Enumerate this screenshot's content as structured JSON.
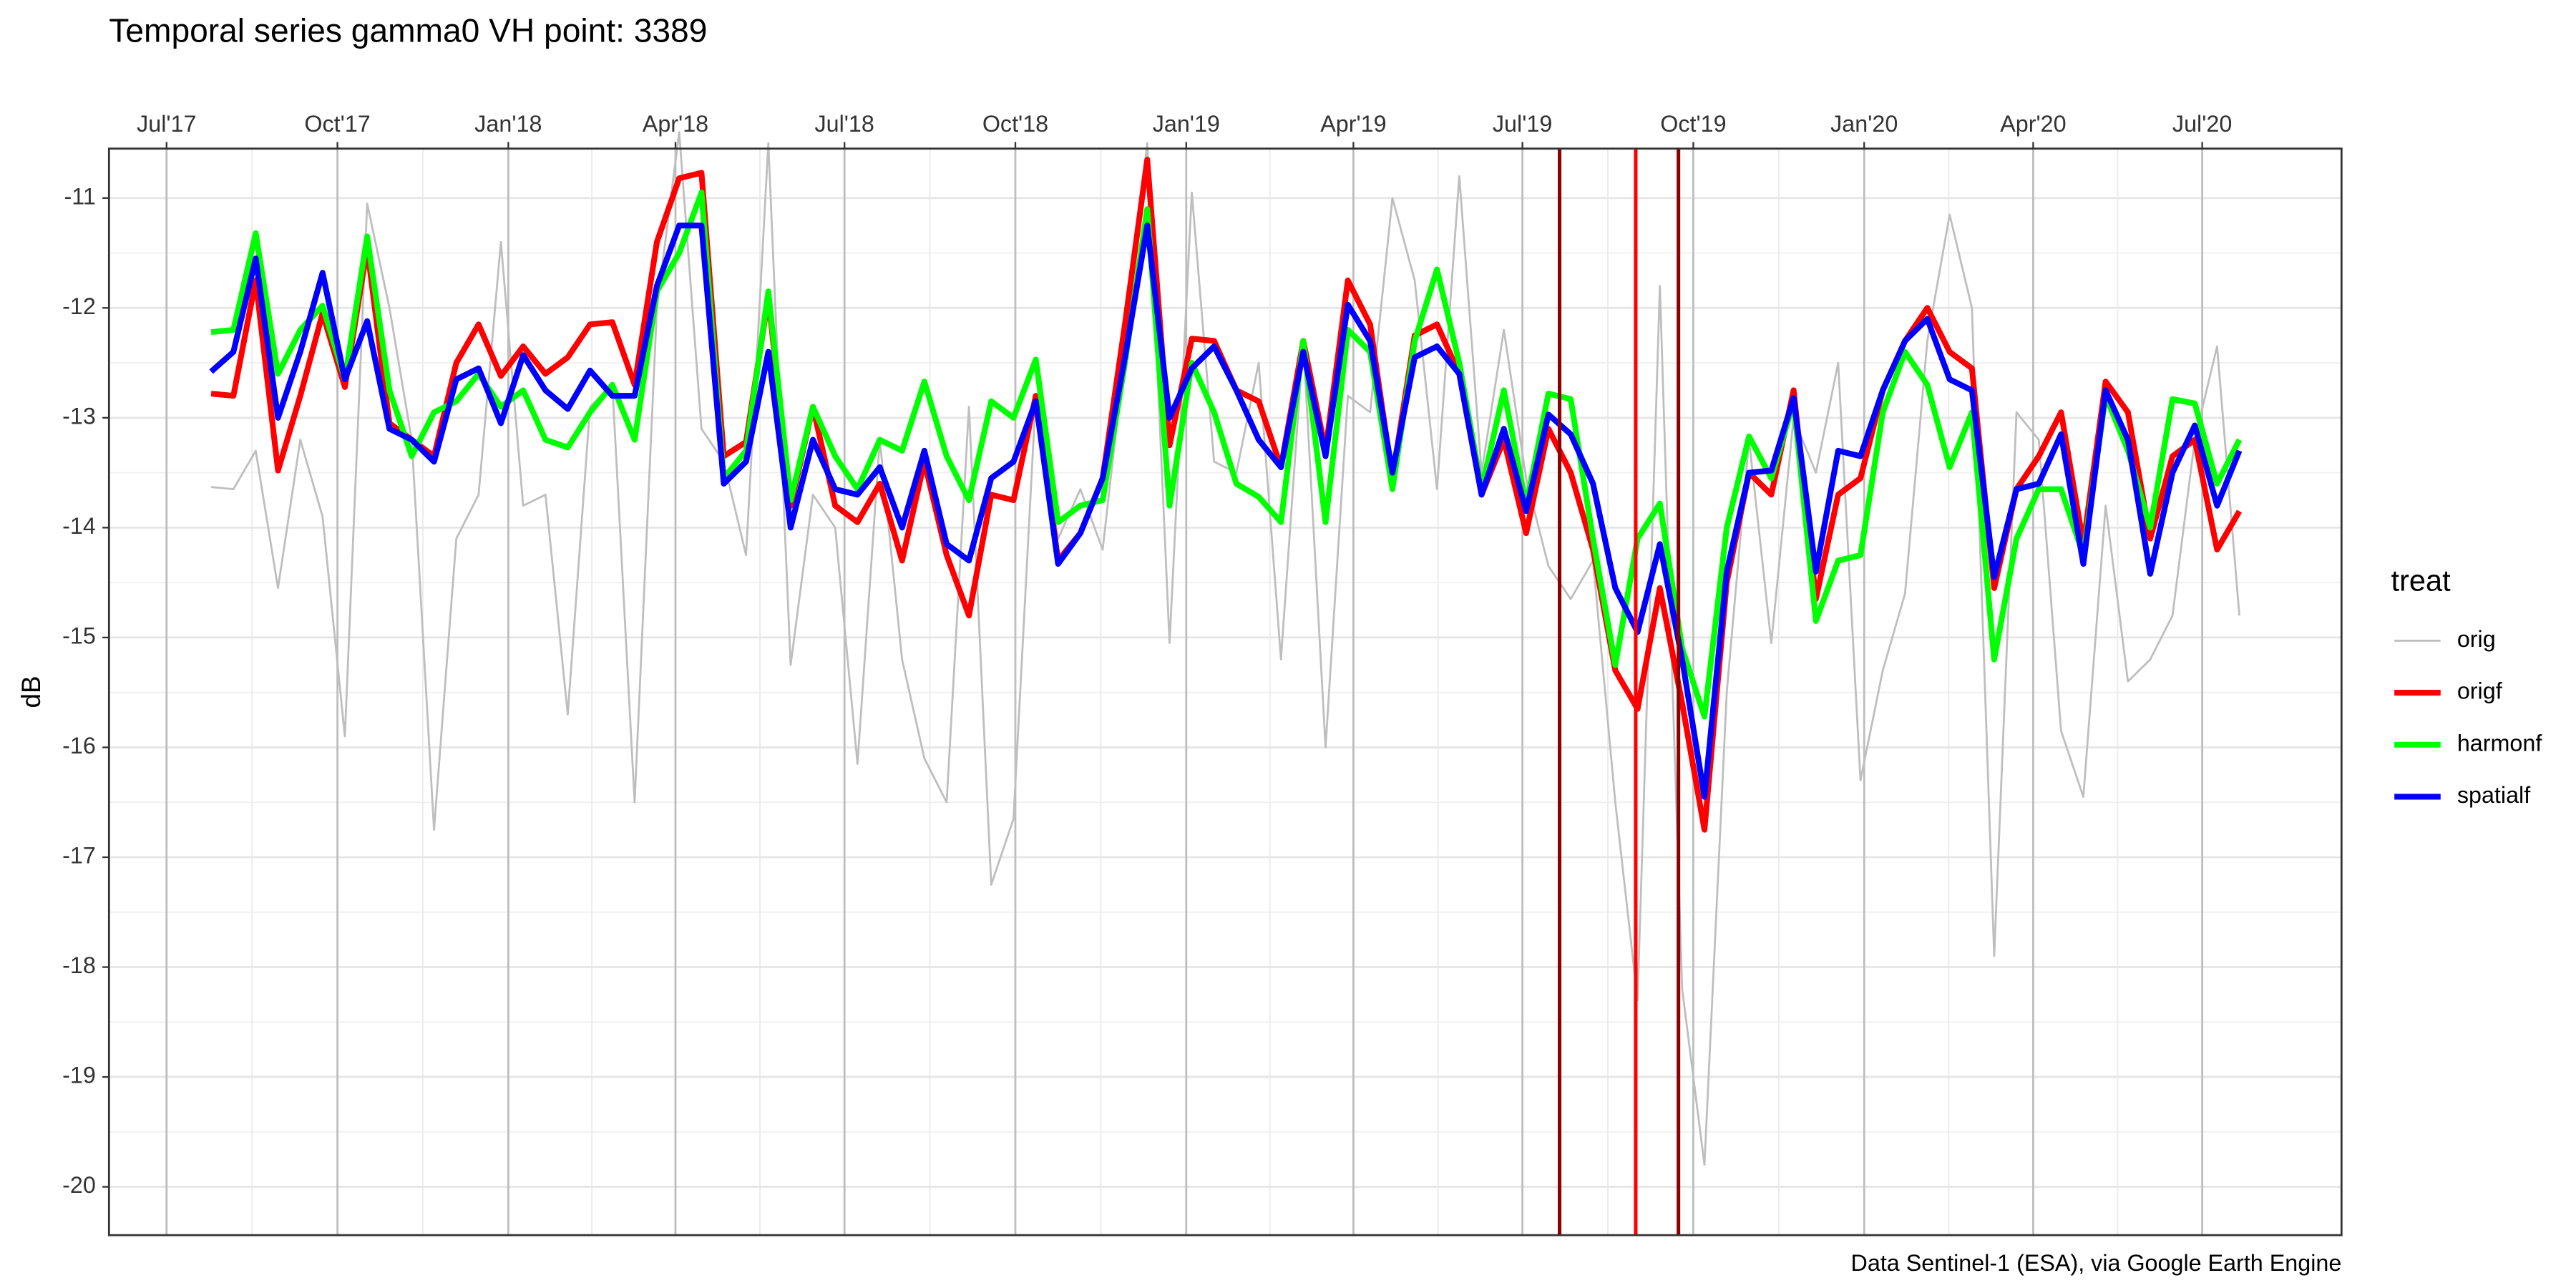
{
  "chart_data": {
    "type": "line",
    "title": "Temporal series gamma0 VH point: 3389",
    "y_label": "dB",
    "caption": "Data Sentinel-1 (ESA), via Google Earth Engine",
    "legend_title": "treat",
    "legend_position": "right",
    "grid": true,
    "minor_grid": true,
    "x_axis_position": "top",
    "x": [
      "2017-07-25",
      "2017-08-06",
      "2017-08-18",
      "2017-08-30",
      "2017-09-11",
      "2017-09-23",
      "2017-10-05",
      "2017-10-17",
      "2017-10-29",
      "2017-11-10",
      "2017-11-22",
      "2017-12-04",
      "2017-12-16",
      "2017-12-28",
      "2018-01-09",
      "2018-01-21",
      "2018-02-02",
      "2018-02-14",
      "2018-02-26",
      "2018-03-10",
      "2018-03-22",
      "2018-04-03",
      "2018-04-15",
      "2018-04-27",
      "2018-05-09",
      "2018-05-21",
      "2018-06-02",
      "2018-06-14",
      "2018-06-26",
      "2018-07-08",
      "2018-07-20",
      "2018-08-01",
      "2018-08-13",
      "2018-08-25",
      "2018-09-06",
      "2018-09-18",
      "2018-09-30",
      "2018-10-12",
      "2018-10-24",
      "2018-11-05",
      "2018-11-17",
      "2018-11-29",
      "2018-12-11",
      "2018-12-23",
      "2019-01-04",
      "2019-01-16",
      "2019-01-28",
      "2019-02-09",
      "2019-02-21",
      "2019-03-05",
      "2019-03-17",
      "2019-03-29",
      "2019-04-10",
      "2019-04-22",
      "2019-05-04",
      "2019-05-16",
      "2019-05-28",
      "2019-06-09",
      "2019-06-21",
      "2019-07-03",
      "2019-07-15",
      "2019-07-27",
      "2019-08-08",
      "2019-08-20",
      "2019-09-01",
      "2019-09-13",
      "2019-09-25",
      "2019-10-07",
      "2019-10-19",
      "2019-10-31",
      "2019-11-12",
      "2019-11-24",
      "2019-12-06",
      "2019-12-18",
      "2019-12-30",
      "2020-01-11",
      "2020-01-23",
      "2020-02-04",
      "2020-02-16",
      "2020-02-28",
      "2020-03-11",
      "2020-03-23",
      "2020-04-04",
      "2020-04-16",
      "2020-04-28",
      "2020-05-10",
      "2020-05-22",
      "2020-06-03",
      "2020-06-15",
      "2020-06-27",
      "2020-07-09",
      "2020-07-21"
    ],
    "series": [
      {
        "name": "orig",
        "color": "#bebebe",
        "line_width": 1.2,
        "values": [
          -13.63,
          -13.65,
          -13.3,
          -14.55,
          -13.2,
          -13.9,
          -15.9,
          -11.05,
          -12.0,
          -13.2,
          -16.75,
          -14.1,
          -13.7,
          -11.4,
          -13.8,
          -13.7,
          -15.7,
          -12.9,
          -12.7,
          -16.5,
          -12.0,
          -10.4,
          -13.1,
          -13.4,
          -14.25,
          -10.5,
          -15.25,
          -13.7,
          -14.0,
          -16.15,
          -13.2,
          -15.2,
          -16.1,
          -16.5,
          -12.9,
          -17.25,
          -16.65,
          -12.8,
          -14.1,
          -13.65,
          -14.2,
          -12.4,
          -10.5,
          -15.05,
          -10.95,
          -13.4,
          -13.5,
          -12.5,
          -15.2,
          -12.3,
          -16.0,
          -12.8,
          -12.95,
          -11.0,
          -11.75,
          -13.65,
          -10.8,
          -13.5,
          -12.2,
          -13.55,
          -14.35,
          -14.65,
          -14.3,
          -16.5,
          -18.3,
          -11.8,
          -18.2,
          -19.8,
          -15.5,
          -13.2,
          -15.05,
          -13.0,
          -13.5,
          -12.5,
          -16.3,
          -15.3,
          -14.6,
          -12.3,
          -11.15,
          -12.0,
          -17.9,
          -12.95,
          -13.2,
          -15.85,
          -16.45,
          -13.8,
          -15.4,
          -15.2,
          -14.8,
          -13.2,
          -12.35,
          -14.8
        ]
      },
      {
        "name": "origf",
        "color": "#ff0000",
        "line_width": 3.5,
        "values": [
          -12.78,
          -12.8,
          -11.75,
          -13.48,
          -12.8,
          -12.05,
          -12.72,
          -11.45,
          -13.05,
          -13.2,
          -13.35,
          -12.5,
          -12.15,
          -12.62,
          -12.35,
          -12.6,
          -12.45,
          -12.15,
          -12.13,
          -12.7,
          -11.4,
          -10.82,
          -10.77,
          -13.35,
          -13.22,
          -11.9,
          -13.8,
          -12.9,
          -13.8,
          -13.95,
          -13.6,
          -14.3,
          -13.4,
          -14.25,
          -14.8,
          -13.7,
          -13.75,
          -12.8,
          -14.3,
          -14.05,
          -13.55,
          -12.15,
          -10.65,
          -13.25,
          -12.28,
          -12.3,
          -12.75,
          -12.85,
          -13.45,
          -12.3,
          -13.3,
          -11.75,
          -12.15,
          -13.55,
          -12.25,
          -12.15,
          -12.6,
          -13.7,
          -13.2,
          -14.05,
          -13.1,
          -13.5,
          -14.2,
          -15.3,
          -15.65,
          -14.55,
          -15.6,
          -16.75,
          -14.5,
          -13.5,
          -13.7,
          -12.75,
          -14.65,
          -13.7,
          -13.55,
          -12.75,
          -12.3,
          -12.0,
          -12.4,
          -12.55,
          -14.55,
          -13.65,
          -13.35,
          -12.95,
          -14.15,
          -12.67,
          -12.95,
          -14.1,
          -13.35,
          -13.2,
          -14.2,
          -13.85
        ]
      },
      {
        "name": "harmonf",
        "color": "#00ff00",
        "line_width": 3.5,
        "values": [
          -12.22,
          -12.2,
          -11.32,
          -12.6,
          -12.2,
          -11.98,
          -12.65,
          -11.35,
          -12.75,
          -13.35,
          -12.95,
          -12.85,
          -12.6,
          -12.9,
          -12.75,
          -13.2,
          -13.27,
          -12.95,
          -12.7,
          -13.2,
          -11.85,
          -11.5,
          -10.95,
          -13.55,
          -13.3,
          -11.85,
          -13.75,
          -12.9,
          -13.35,
          -13.65,
          -13.2,
          -13.3,
          -12.67,
          -13.35,
          -13.75,
          -12.85,
          -13.0,
          -12.47,
          -13.95,
          -13.8,
          -13.75,
          -12.5,
          -11.1,
          -13.8,
          -12.5,
          -12.95,
          -13.6,
          -13.72,
          -13.95,
          -12.3,
          -13.95,
          -12.2,
          -12.4,
          -13.65,
          -12.3,
          -11.65,
          -12.5,
          -13.65,
          -12.75,
          -13.8,
          -12.78,
          -12.83,
          -14.1,
          -15.25,
          -14.1,
          -13.78,
          -15.1,
          -15.72,
          -14.0,
          -13.17,
          -13.55,
          -12.85,
          -14.85,
          -14.3,
          -14.25,
          -12.95,
          -12.4,
          -12.7,
          -13.45,
          -12.95,
          -15.2,
          -14.1,
          -13.65,
          -13.65,
          -14.25,
          -12.8,
          -13.3,
          -14.0,
          -12.83,
          -12.87,
          -13.6,
          -13.2
        ]
      },
      {
        "name": "spatialf",
        "color": "#0000ff",
        "line_width": 3.5,
        "values": [
          -12.58,
          -12.4,
          -11.55,
          -13.0,
          -12.4,
          -11.68,
          -12.65,
          -12.12,
          -13.1,
          -13.2,
          -13.4,
          -12.65,
          -12.55,
          -13.05,
          -12.43,
          -12.75,
          -12.92,
          -12.57,
          -12.8,
          -12.8,
          -11.8,
          -11.25,
          -11.25,
          -13.6,
          -13.4,
          -12.4,
          -14.0,
          -13.2,
          -13.65,
          -13.7,
          -13.45,
          -14.0,
          -13.3,
          -14.15,
          -14.3,
          -13.55,
          -13.4,
          -12.85,
          -14.33,
          -14.05,
          -13.55,
          -12.45,
          -11.25,
          -13.0,
          -12.55,
          -12.35,
          -12.75,
          -13.2,
          -13.45,
          -12.4,
          -13.35,
          -11.97,
          -12.3,
          -13.5,
          -12.45,
          -12.35,
          -12.6,
          -13.7,
          -13.1,
          -13.85,
          -12.97,
          -13.15,
          -13.6,
          -14.55,
          -14.95,
          -14.15,
          -15.2,
          -16.45,
          -14.4,
          -13.5,
          -13.48,
          -12.82,
          -14.4,
          -13.3,
          -13.35,
          -12.75,
          -12.3,
          -12.1,
          -12.65,
          -12.75,
          -14.45,
          -13.65,
          -13.6,
          -13.15,
          -14.33,
          -12.75,
          -13.2,
          -14.42,
          -13.5,
          -13.07,
          -13.8,
          -13.3
        ]
      }
    ],
    "vlines": [
      {
        "x": "2019-07-21",
        "color": "#8b0000"
      },
      {
        "x": "2019-08-31",
        "color": "#ff0000"
      },
      {
        "x": "2019-09-23",
        "color": "#8b0000"
      }
    ],
    "xlim": [
      "2017-05-31",
      "2020-09-14"
    ],
    "xticks": [
      {
        "value": "2017-07-01",
        "label": "Jul'17"
      },
      {
        "value": "2017-10-01",
        "label": "Oct'17"
      },
      {
        "value": "2018-01-01",
        "label": "Jan'18"
      },
      {
        "value": "2018-04-01",
        "label": "Apr'18"
      },
      {
        "value": "2018-07-01",
        "label": "Jul'18"
      },
      {
        "value": "2018-10-01",
        "label": "Oct'18"
      },
      {
        "value": "2019-01-01",
        "label": "Jan'19"
      },
      {
        "value": "2019-04-01",
        "label": "Apr'19"
      },
      {
        "value": "2019-07-01",
        "label": "Jul'19"
      },
      {
        "value": "2019-10-01",
        "label": "Oct'19"
      },
      {
        "value": "2020-01-01",
        "label": "Jan'20"
      },
      {
        "value": "2020-04-01",
        "label": "Apr'20"
      },
      {
        "value": "2020-07-01",
        "label": "Jul'20"
      }
    ],
    "ylim": [
      -20.44,
      -10.55
    ],
    "yticks": [
      -20,
      -19,
      -18,
      -17,
      -16,
      -15,
      -14,
      -13,
      -12,
      -11
    ]
  }
}
